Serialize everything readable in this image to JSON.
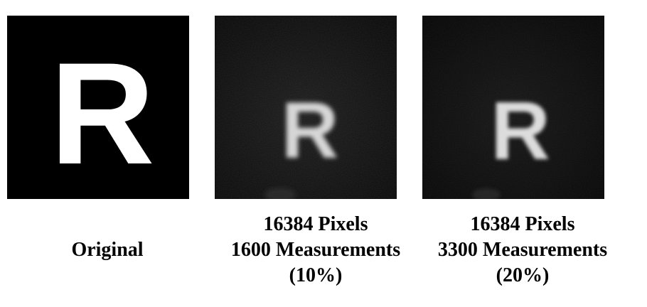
{
  "panels": [
    {
      "id": "original",
      "letter": "R",
      "caption_lines": [
        "Original"
      ]
    },
    {
      "id": "recon-10",
      "letter": "R",
      "caption_lines": [
        "16384 Pixels",
        "1600 Measurements",
        "(10%)"
      ]
    },
    {
      "id": "recon-20",
      "letter": "R",
      "caption_lines": [
        "16384 Pixels",
        "3300 Measurements",
        "(20%)"
      ]
    }
  ],
  "colors": {
    "background": "#ffffff",
    "panel_black": "#000000",
    "recon_dark": "#0f0f0f",
    "letter_white": "#ffffff",
    "recon_letter": "#e6e6e6"
  }
}
